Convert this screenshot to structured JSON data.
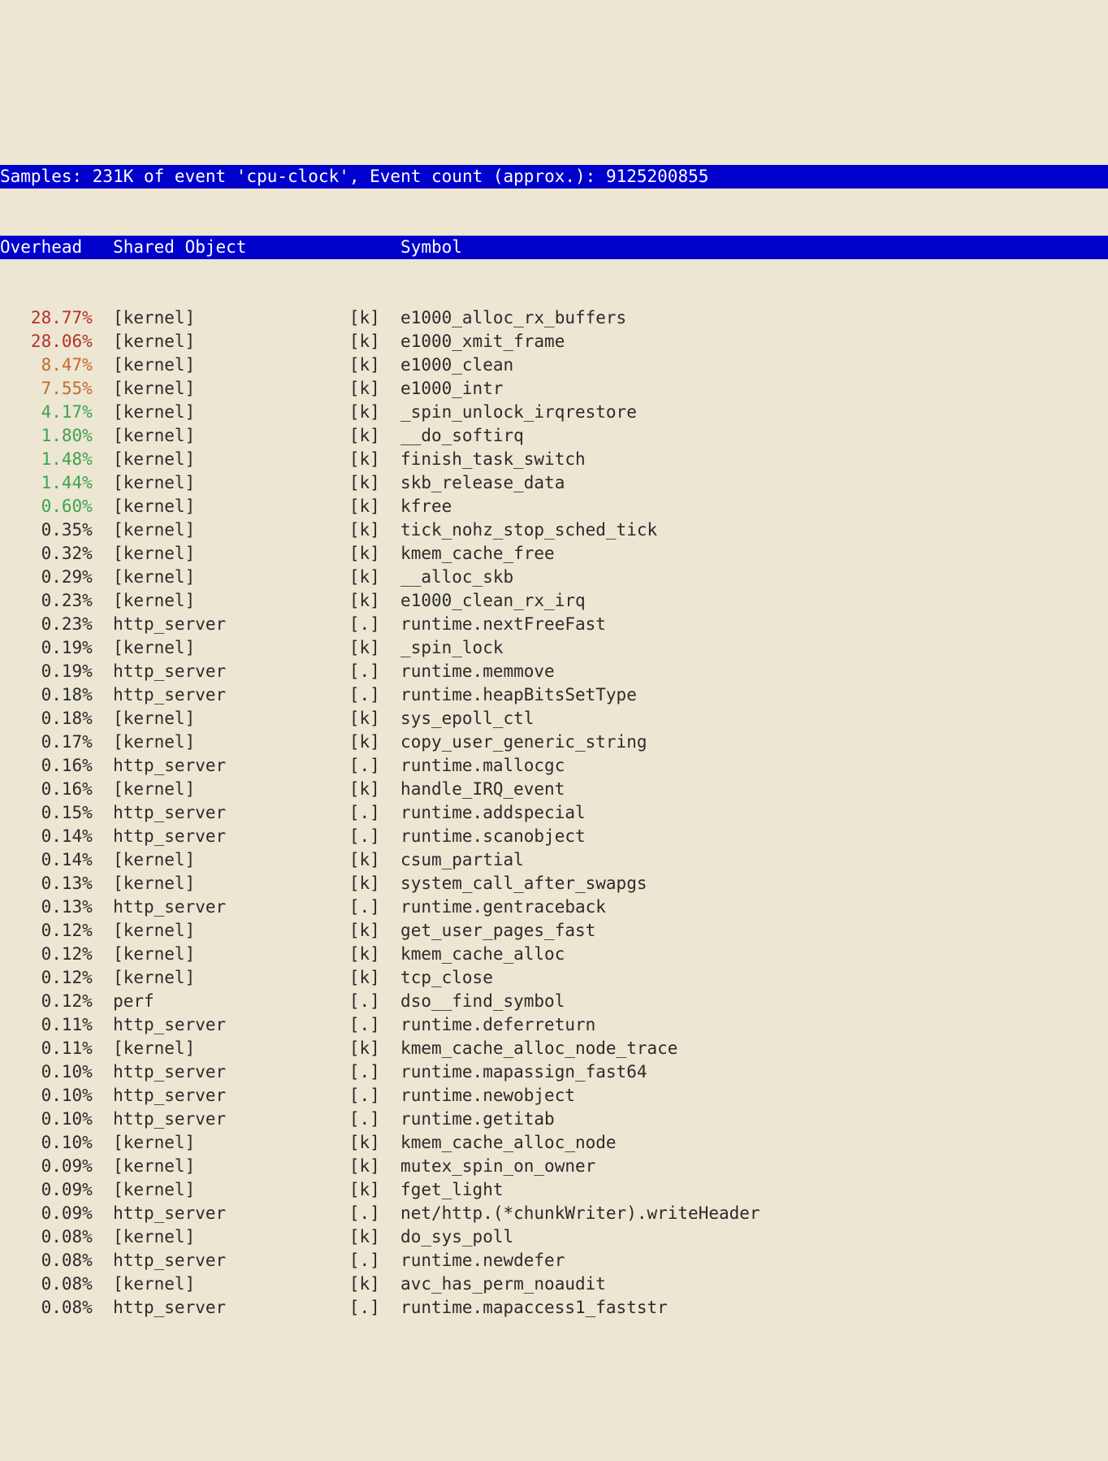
{
  "header": {
    "info_line": "Samples: 231K of event 'cpu-clock', Event count (approx.): 9125200855",
    "col_overhead": "Overhead",
    "col_shared": "Shared Object",
    "col_symbol": "Symbol"
  },
  "colors": {
    "background": "#ece6d3",
    "header_bg": "#0000cc",
    "header_fg": "#ffffff",
    "fg": "#2b2b2b",
    "red": "#b83025",
    "orange": "#c46a2a",
    "green": "#3fa34d"
  },
  "rows": [
    {
      "overhead": "28.77%",
      "color": "red",
      "shared": "[kernel]",
      "mark": "[k]",
      "symbol": "e1000_alloc_rx_buffers"
    },
    {
      "overhead": "28.06%",
      "color": "red",
      "shared": "[kernel]",
      "mark": "[k]",
      "symbol": "e1000_xmit_frame"
    },
    {
      "overhead": "8.47%",
      "color": "orange",
      "shared": "[kernel]",
      "mark": "[k]",
      "symbol": "e1000_clean"
    },
    {
      "overhead": "7.55%",
      "color": "orange",
      "shared": "[kernel]",
      "mark": "[k]",
      "symbol": "e1000_intr"
    },
    {
      "overhead": "4.17%",
      "color": "green",
      "shared": "[kernel]",
      "mark": "[k]",
      "symbol": "_spin_unlock_irqrestore"
    },
    {
      "overhead": "1.80%",
      "color": "green",
      "shared": "[kernel]",
      "mark": "[k]",
      "symbol": "__do_softirq"
    },
    {
      "overhead": "1.48%",
      "color": "green",
      "shared": "[kernel]",
      "mark": "[k]",
      "symbol": "finish_task_switch"
    },
    {
      "overhead": "1.44%",
      "color": "green",
      "shared": "[kernel]",
      "mark": "[k]",
      "symbol": "skb_release_data"
    },
    {
      "overhead": "0.60%",
      "color": "green",
      "shared": "[kernel]",
      "mark": "[k]",
      "symbol": "kfree"
    },
    {
      "overhead": "0.35%",
      "color": "fg",
      "shared": "[kernel]",
      "mark": "[k]",
      "symbol": "tick_nohz_stop_sched_tick"
    },
    {
      "overhead": "0.32%",
      "color": "fg",
      "shared": "[kernel]",
      "mark": "[k]",
      "symbol": "kmem_cache_free"
    },
    {
      "overhead": "0.29%",
      "color": "fg",
      "shared": "[kernel]",
      "mark": "[k]",
      "symbol": "__alloc_skb"
    },
    {
      "overhead": "0.23%",
      "color": "fg",
      "shared": "[kernel]",
      "mark": "[k]",
      "symbol": "e1000_clean_rx_irq"
    },
    {
      "overhead": "0.23%",
      "color": "fg",
      "shared": "http_server",
      "mark": "[.]",
      "symbol": "runtime.nextFreeFast"
    },
    {
      "overhead": "0.19%",
      "color": "fg",
      "shared": "[kernel]",
      "mark": "[k]",
      "symbol": "_spin_lock"
    },
    {
      "overhead": "0.19%",
      "color": "fg",
      "shared": "http_server",
      "mark": "[.]",
      "symbol": "runtime.memmove"
    },
    {
      "overhead": "0.18%",
      "color": "fg",
      "shared": "http_server",
      "mark": "[.]",
      "symbol": "runtime.heapBitsSetType"
    },
    {
      "overhead": "0.18%",
      "color": "fg",
      "shared": "[kernel]",
      "mark": "[k]",
      "symbol": "sys_epoll_ctl"
    },
    {
      "overhead": "0.17%",
      "color": "fg",
      "shared": "[kernel]",
      "mark": "[k]",
      "symbol": "copy_user_generic_string"
    },
    {
      "overhead": "0.16%",
      "color": "fg",
      "shared": "http_server",
      "mark": "[.]",
      "symbol": "runtime.mallocgc"
    },
    {
      "overhead": "0.16%",
      "color": "fg",
      "shared": "[kernel]",
      "mark": "[k]",
      "symbol": "handle_IRQ_event"
    },
    {
      "overhead": "0.15%",
      "color": "fg",
      "shared": "http_server",
      "mark": "[.]",
      "symbol": "runtime.addspecial"
    },
    {
      "overhead": "0.14%",
      "color": "fg",
      "shared": "http_server",
      "mark": "[.]",
      "symbol": "runtime.scanobject"
    },
    {
      "overhead": "0.14%",
      "color": "fg",
      "shared": "[kernel]",
      "mark": "[k]",
      "symbol": "csum_partial"
    },
    {
      "overhead": "0.13%",
      "color": "fg",
      "shared": "[kernel]",
      "mark": "[k]",
      "symbol": "system_call_after_swapgs"
    },
    {
      "overhead": "0.13%",
      "color": "fg",
      "shared": "http_server",
      "mark": "[.]",
      "symbol": "runtime.gentraceback"
    },
    {
      "overhead": "0.12%",
      "color": "fg",
      "shared": "[kernel]",
      "mark": "[k]",
      "symbol": "get_user_pages_fast"
    },
    {
      "overhead": "0.12%",
      "color": "fg",
      "shared": "[kernel]",
      "mark": "[k]",
      "symbol": "kmem_cache_alloc"
    },
    {
      "overhead": "0.12%",
      "color": "fg",
      "shared": "[kernel]",
      "mark": "[k]",
      "symbol": "tcp_close"
    },
    {
      "overhead": "0.12%",
      "color": "fg",
      "shared": "perf",
      "mark": "[.]",
      "symbol": "dso__find_symbol"
    },
    {
      "overhead": "0.11%",
      "color": "fg",
      "shared": "http_server",
      "mark": "[.]",
      "symbol": "runtime.deferreturn"
    },
    {
      "overhead": "0.11%",
      "color": "fg",
      "shared": "[kernel]",
      "mark": "[k]",
      "symbol": "kmem_cache_alloc_node_trace"
    },
    {
      "overhead": "0.10%",
      "color": "fg",
      "shared": "http_server",
      "mark": "[.]",
      "symbol": "runtime.mapassign_fast64"
    },
    {
      "overhead": "0.10%",
      "color": "fg",
      "shared": "http_server",
      "mark": "[.]",
      "symbol": "runtime.newobject"
    },
    {
      "overhead": "0.10%",
      "color": "fg",
      "shared": "http_server",
      "mark": "[.]",
      "symbol": "runtime.getitab"
    },
    {
      "overhead": "0.10%",
      "color": "fg",
      "shared": "[kernel]",
      "mark": "[k]",
      "symbol": "kmem_cache_alloc_node"
    },
    {
      "overhead": "0.09%",
      "color": "fg",
      "shared": "[kernel]",
      "mark": "[k]",
      "symbol": "mutex_spin_on_owner"
    },
    {
      "overhead": "0.09%",
      "color": "fg",
      "shared": "[kernel]",
      "mark": "[k]",
      "symbol": "fget_light"
    },
    {
      "overhead": "0.09%",
      "color": "fg",
      "shared": "http_server",
      "mark": "[.]",
      "symbol": "net/http.(*chunkWriter).writeHeader"
    },
    {
      "overhead": "0.08%",
      "color": "fg",
      "shared": "[kernel]",
      "mark": "[k]",
      "symbol": "do_sys_poll"
    },
    {
      "overhead": "0.08%",
      "color": "fg",
      "shared": "http_server",
      "mark": "[.]",
      "symbol": "runtime.newdefer"
    },
    {
      "overhead": "0.08%",
      "color": "fg",
      "shared": "[kernel]",
      "mark": "[k]",
      "symbol": "avc_has_perm_noaudit"
    },
    {
      "overhead": "0.08%",
      "color": "fg",
      "shared": "http_server",
      "mark": "[.]",
      "symbol": "runtime.mapaccess1_faststr"
    }
  ]
}
